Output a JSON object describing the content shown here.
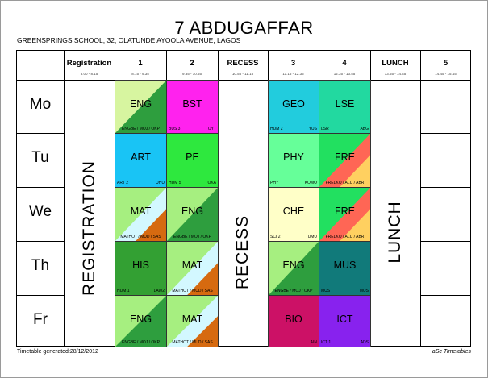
{
  "header": {
    "title": "7 ABDUGAFFAR",
    "school": "GREENSPRINGS SCHOOL, 32, OLATUNDE AYOOLA AVENUE, LAGOS"
  },
  "columns": [
    {
      "name": "Registration",
      "time": "8:00 - 8:15"
    },
    {
      "name": "1",
      "time": "8:15 - 9:35"
    },
    {
      "name": "2",
      "time": "9:35 - 10:55"
    },
    {
      "name": "RECESS",
      "time": "10:55 - 11:15"
    },
    {
      "name": "3",
      "time": "11:15 - 12:35"
    },
    {
      "name": "4",
      "time": "12:35 - 13:55"
    },
    {
      "name": "LUNCH",
      "time": "13:55 - 14:45"
    },
    {
      "name": "5",
      "time": "14:45 - 15:45"
    }
  ],
  "days": [
    "Mo",
    "Tu",
    "We",
    "Th",
    "Fr"
  ],
  "vertical_labels": {
    "registration": "REGISTRATION",
    "recess": "RECESS",
    "lunch": "LUNCH"
  },
  "lessons": [
    {
      "day": 0,
      "period": 1,
      "subject": "ENG",
      "room": "ENGBE / MOJ / OKP",
      "teacher": "",
      "colors": [
        "#d7f5a0",
        "#2e9e3e"
      ],
      "split": true
    },
    {
      "day": 0,
      "period": 2,
      "subject": "BST",
      "room": "BUS 3",
      "teacher": "OYT",
      "colors": [
        "#ff22ee"
      ],
      "split": false
    },
    {
      "day": 0,
      "period": 3,
      "subject": "GEO",
      "room": "HUM 2",
      "teacher": "YUS",
      "colors": [
        "#22ccdd"
      ],
      "split": false
    },
    {
      "day": 0,
      "period": 4,
      "subject": "LSE",
      "room": "LSR",
      "teacher": "ABG",
      "colors": [
        "#22d9a0"
      ],
      "split": false
    },
    {
      "day": 1,
      "period": 1,
      "subject": "ART",
      "room": "ART 2",
      "teacher": "UHU",
      "colors": [
        "#19c4f5"
      ],
      "split": false
    },
    {
      "day": 1,
      "period": 2,
      "subject": "PE",
      "room": "HUM 5",
      "teacher": "OKA",
      "colors": [
        "#2ee83e"
      ],
      "split": false
    },
    {
      "day": 1,
      "period": 3,
      "subject": "PHY",
      "room": "PHY",
      "teacher": "KOMO",
      "colors": [
        "#66ff99"
      ],
      "split": false
    },
    {
      "day": 1,
      "period": 4,
      "subject": "FRE",
      "room": "FRELKO / ALU / ABR",
      "teacher": "",
      "colors": [
        "#22e060",
        "#ff6655",
        "#ffd060"
      ],
      "split": true
    },
    {
      "day": 2,
      "period": 1,
      "subject": "MAT",
      "room": "MATHOT / MUD / SAS",
      "teacher": "",
      "colors": [
        "#a6ef80",
        "#d3f8ff",
        "#d66a10"
      ],
      "split": true
    },
    {
      "day": 2,
      "period": 2,
      "subject": "ENG",
      "room": "ENGBE / MOJ / OKP",
      "teacher": "",
      "colors": [
        "#a6ef80",
        "#2e9e3e"
      ],
      "split": true
    },
    {
      "day": 2,
      "period": 3,
      "subject": "CHE",
      "room": "SCI 2",
      "teacher": "UMU",
      "colors": [
        "#ffffc8"
      ],
      "split": false
    },
    {
      "day": 2,
      "period": 4,
      "subject": "FRE",
      "room": "FRELKO / ALU / ABR",
      "teacher": "",
      "colors": [
        "#22e060",
        "#ff6655",
        "#ffd060"
      ],
      "split": true
    },
    {
      "day": 3,
      "period": 1,
      "subject": "HIS",
      "room": "HUM 1",
      "teacher": "LAW2",
      "colors": [
        "#33a033"
      ],
      "split": false
    },
    {
      "day": 3,
      "period": 2,
      "subject": "MAT",
      "room": "MATHOT / MUD / SAS",
      "teacher": "",
      "colors": [
        "#a6ef80",
        "#d3f8ff",
        "#d66a10"
      ],
      "split": true
    },
    {
      "day": 3,
      "period": 3,
      "subject": "ENG",
      "room": "ENGBE / MOJ / OKP",
      "teacher": "",
      "colors": [
        "#a6ef80",
        "#2e9e3e"
      ],
      "split": true
    },
    {
      "day": 3,
      "period": 4,
      "subject": "MUS",
      "room": "MUS",
      "teacher": "MUS",
      "colors": [
        "#117a7a"
      ],
      "split": false
    },
    {
      "day": 4,
      "period": 1,
      "subject": "ENG",
      "room": "ENGBE / MOJ / OKP",
      "teacher": "",
      "colors": [
        "#a6ef80",
        "#2e9e3e"
      ],
      "split": true
    },
    {
      "day": 4,
      "period": 2,
      "subject": "MAT",
      "room": "MATHOT / MUD / SAS",
      "teacher": "",
      "colors": [
        "#a6ef80",
        "#d3f8ff",
        "#d66a10"
      ],
      "split": true
    },
    {
      "day": 4,
      "period": 3,
      "subject": "BIO",
      "room": "",
      "teacher": "AIN",
      "colors": [
        "#cc1166"
      ],
      "split": false
    },
    {
      "day": 4,
      "period": 4,
      "subject": "ICT",
      "room": "ICT 1",
      "teacher": "ADS",
      "colors": [
        "#8822ee"
      ],
      "split": false
    }
  ],
  "footer": {
    "generated": "Timetable generated:28/12/2012",
    "brand": "aSc Timetables"
  }
}
